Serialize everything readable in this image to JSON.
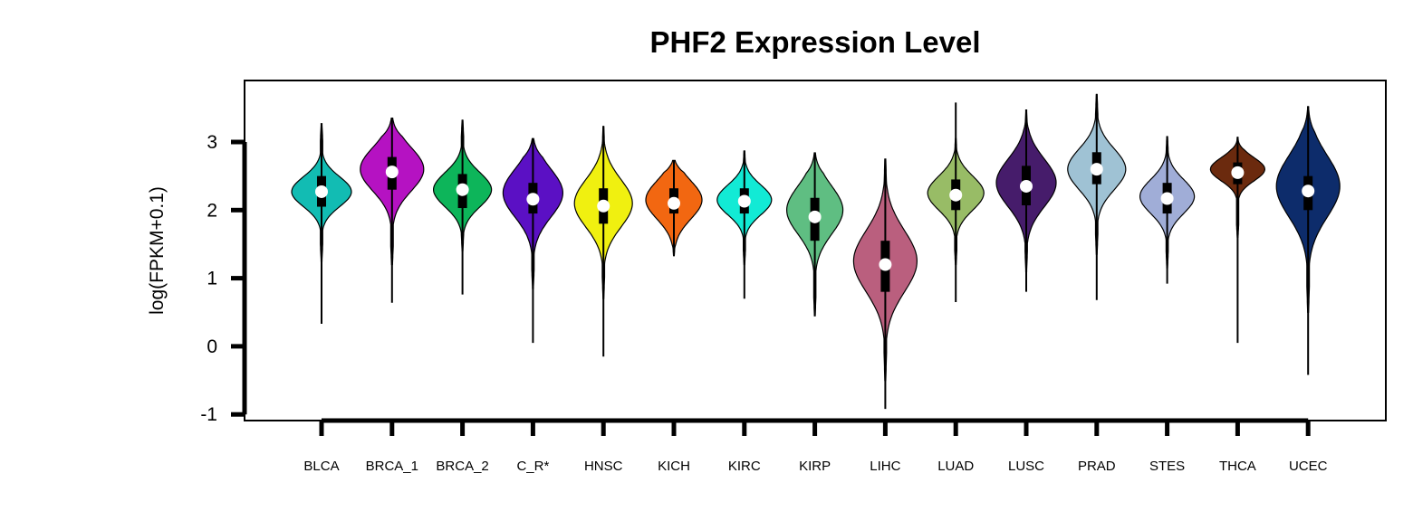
{
  "chart_data": {
    "type": "violin",
    "title": "PHF2 Expression Level",
    "ylabel": "log(FPKM+0.1)",
    "xlabel": "",
    "ylim": [
      -1.1,
      3.9
    ],
    "yticks": [
      "3",
      "2",
      "1",
      "0",
      "-1"
    ],
    "ytick_values": [
      3,
      2,
      1,
      0,
      -1
    ],
    "legend": "none",
    "grid": false,
    "groups": [
      {
        "name": "BLCA",
        "color": "#12BCB3",
        "min": 0.33,
        "max": 3.27,
        "q1": 2.05,
        "median": 2.27,
        "q3": 2.5,
        "whisker_low": 1.22,
        "whisker_high": 3.25,
        "viol_low": 1.25,
        "viol_high": 3.27,
        "mode": 2.27,
        "spread": 0.22,
        "max_halfwidth": 33
      },
      {
        "name": "BRCA_1",
        "color": "#B512C2",
        "min": 0.64,
        "max": 3.35,
        "q1": 2.3,
        "median": 2.56,
        "q3": 2.78,
        "whisker_low": 1.25,
        "whisker_high": 3.35,
        "viol_low": 1.2,
        "viol_high": 3.35,
        "mode": 2.6,
        "spread": 0.32,
        "max_halfwidth": 35
      },
      {
        "name": "BRCA_2",
        "color": "#0DB55A",
        "min": 0.76,
        "max": 3.32,
        "q1": 2.03,
        "median": 2.3,
        "q3": 2.53,
        "whisker_low": 1.35,
        "whisker_high": 3.32,
        "viol_low": 1.4,
        "viol_high": 3.32,
        "mode": 2.3,
        "spread": 0.25,
        "max_halfwidth": 32
      },
      {
        "name": "C_R*",
        "color": "#5B10C4",
        "min": 0.05,
        "max": 3.05,
        "q1": 1.95,
        "median": 2.16,
        "q3": 2.4,
        "whisker_low": 0.95,
        "whisker_high": 3.05,
        "viol_low": 0.85,
        "viol_high": 3.05,
        "mode": 2.25,
        "spread": 0.35,
        "max_halfwidth": 33
      },
      {
        "name": "HNSC",
        "color": "#F0F010",
        "min": -0.15,
        "max": 3.23,
        "q1": 1.8,
        "median": 2.06,
        "q3": 2.32,
        "whisker_low": 0.75,
        "whisker_high": 3.2,
        "viol_low": 0.7,
        "viol_high": 3.23,
        "mode": 2.1,
        "spread": 0.35,
        "max_halfwidth": 32
      },
      {
        "name": "KICH",
        "color": "#F26711",
        "min": 1.33,
        "max": 2.73,
        "q1": 1.95,
        "median": 2.1,
        "q3": 2.32,
        "whisker_low": 1.33,
        "whisker_high": 2.73,
        "viol_low": 1.33,
        "viol_high": 2.73,
        "mode": 2.15,
        "spread": 0.28,
        "max_halfwidth": 31
      },
      {
        "name": "KIRC",
        "color": "#12EAD5",
        "min": 0.7,
        "max": 2.87,
        "q1": 1.95,
        "median": 2.13,
        "q3": 2.32,
        "whisker_low": 1.2,
        "whisker_high": 2.85,
        "viol_low": 1.2,
        "viol_high": 2.87,
        "mode": 2.15,
        "spread": 0.22,
        "max_halfwidth": 30
      },
      {
        "name": "KIRP",
        "color": "#5FBE82",
        "min": 0.44,
        "max": 2.84,
        "q1": 1.55,
        "median": 1.9,
        "q3": 2.18,
        "whisker_low": 0.5,
        "whisker_high": 2.84,
        "viol_low": 0.45,
        "viol_high": 2.84,
        "mode": 2.0,
        "spread": 0.35,
        "max_halfwidth": 31
      },
      {
        "name": "LIHC",
        "color": "#BA5F7E",
        "min": -0.92,
        "max": 2.75,
        "q1": 0.8,
        "median": 1.2,
        "q3": 1.55,
        "whisker_low": -0.4,
        "whisker_high": 2.75,
        "viol_low": -0.5,
        "viol_high": 2.75,
        "mode": 1.25,
        "spread": 0.45,
        "max_halfwidth": 35
      },
      {
        "name": "LUAD",
        "color": "#98BC66",
        "min": 0.65,
        "max": 3.58,
        "q1": 2.0,
        "median": 2.22,
        "q3": 2.45,
        "whisker_low": 1.15,
        "whisker_high": 3.05,
        "viol_low": 1.2,
        "viol_high": 3.05,
        "mode": 2.25,
        "spread": 0.25,
        "max_halfwidth": 31
      },
      {
        "name": "LUSC",
        "color": "#461C6B",
        "min": 0.8,
        "max": 3.47,
        "q1": 2.07,
        "median": 2.35,
        "q3": 2.65,
        "whisker_low": 1.1,
        "whisker_high": 3.45,
        "viol_low": 1.1,
        "viol_high": 3.47,
        "mode": 2.4,
        "spread": 0.35,
        "max_halfwidth": 33
      },
      {
        "name": "PRAD",
        "color": "#9FC2D4",
        "min": 0.68,
        "max": 3.7,
        "q1": 2.38,
        "median": 2.6,
        "q3": 2.85,
        "whisker_low": 1.4,
        "whisker_high": 3.65,
        "viol_low": 1.35,
        "viol_high": 3.7,
        "mode": 2.6,
        "spread": 0.3,
        "max_halfwidth": 32
      },
      {
        "name": "STES",
        "color": "#A0ADD7",
        "min": 0.92,
        "max": 3.08,
        "q1": 1.95,
        "median": 2.17,
        "q3": 2.4,
        "whisker_low": 1.2,
        "whisker_high": 3.07,
        "viol_low": 1.15,
        "viol_high": 3.08,
        "mode": 2.2,
        "spread": 0.25,
        "max_halfwidth": 30
      },
      {
        "name": "THCA",
        "color": "#6B2A0E",
        "min": 0.05,
        "max": 3.07,
        "q1": 2.38,
        "median": 2.55,
        "q3": 2.7,
        "whisker_low": 1.65,
        "whisker_high": 3.05,
        "viol_low": 1.6,
        "viol_high": 3.07,
        "mode": 2.6,
        "spread": 0.17,
        "max_halfwidth": 30
      },
      {
        "name": "UCEC",
        "color": "#0D2C6B",
        "min": -0.42,
        "max": 3.52,
        "q1": 2.0,
        "median": 2.28,
        "q3": 2.5,
        "whisker_low": 1.25,
        "whisker_high": 3.25,
        "viol_low": 0.5,
        "viol_high": 3.52,
        "mode": 2.35,
        "spread": 0.45,
        "max_halfwidth": 35
      }
    ]
  }
}
